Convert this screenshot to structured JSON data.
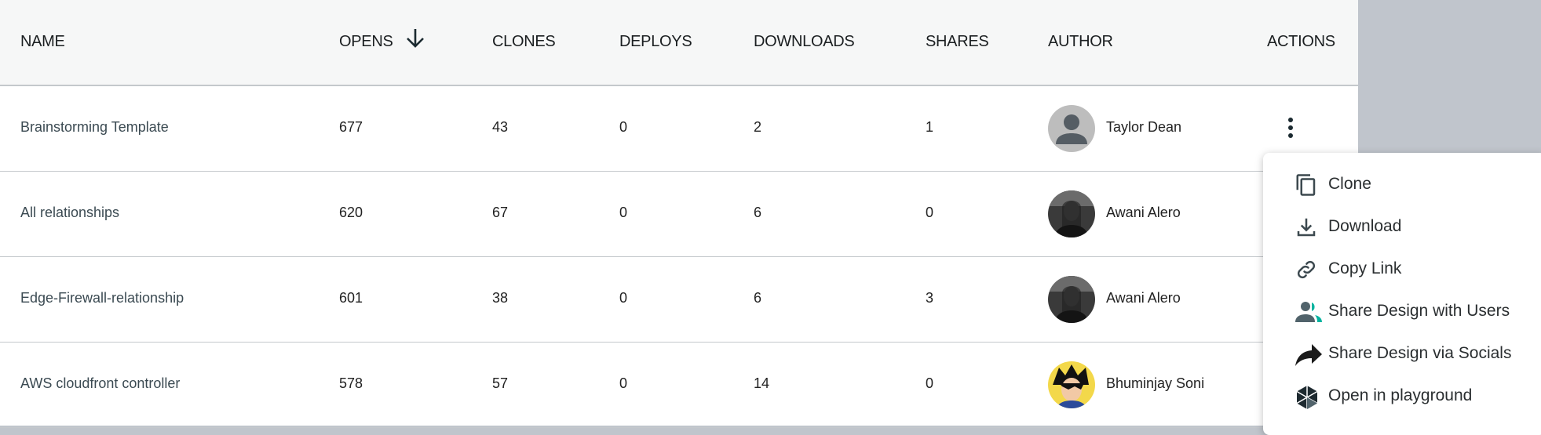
{
  "columns": [
    "NAME",
    "OPENS",
    "CLONES",
    "DEPLOYS",
    "DOWNLOADS",
    "SHARES",
    "AUTHOR",
    "ACTIONS"
  ],
  "sort": {
    "column": "OPENS",
    "direction": "descending",
    "icon": "arrow-down-icon"
  },
  "rows": [
    {
      "name": "Brainstorming Template",
      "opens": "677",
      "clones": "43",
      "deploys": "0",
      "downloads": "2",
      "shares": "1",
      "author": "Taylor Dean",
      "avatar": "default-user-avatar"
    },
    {
      "name": "All relationships",
      "opens": "620",
      "clones": "67",
      "deploys": "0",
      "downloads": "6",
      "shares": "0",
      "author": "Awani Alero",
      "avatar": "photo-avatar"
    },
    {
      "name": "Edge-Firewall-relationship",
      "opens": "601",
      "clones": "38",
      "deploys": "0",
      "downloads": "6",
      "shares": "3",
      "author": "Awani Alero",
      "avatar": "photo-avatar"
    },
    {
      "name": "AWS cloudfront controller",
      "opens": "578",
      "clones": "57",
      "deploys": "0",
      "downloads": "14",
      "shares": "0",
      "author": "Bhuminjay Soni",
      "avatar": "anime-avatar"
    }
  ],
  "menu": {
    "items": [
      {
        "label": "Clone",
        "icon": "copy-icon"
      },
      {
        "label": "Download",
        "icon": "download-icon"
      },
      {
        "label": "Copy Link",
        "icon": "link-icon"
      },
      {
        "label": "Share Design with Users",
        "icon": "users-icon"
      },
      {
        "label": "Share Design via Socials",
        "icon": "share-arrow-icon"
      },
      {
        "label": "Open in playground",
        "icon": "playground-icon"
      }
    ]
  },
  "colors": {
    "accent": "#00b39f",
    "header_bg": "#f6f7f7",
    "backdrop": "#c0c5cc",
    "icon": "#3c494f"
  }
}
